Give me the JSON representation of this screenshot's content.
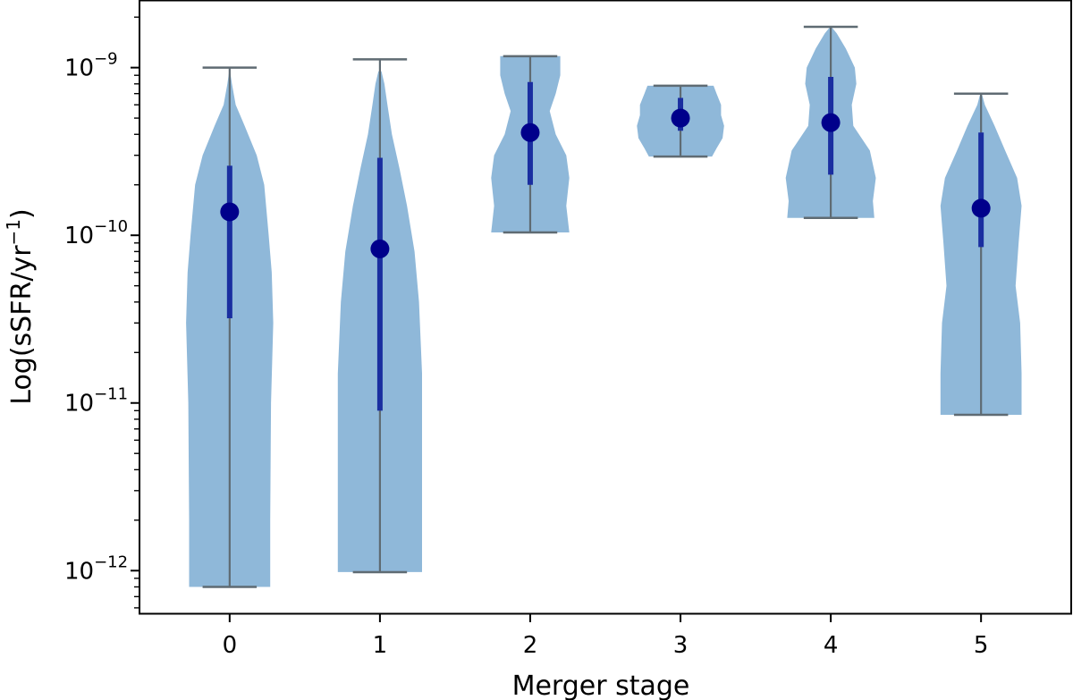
{
  "chart_data": {
    "type": "violin",
    "xlabel": "Merger stage",
    "ylabel": {
      "text": "Log(sSFR/yr",
      "superscript": "−1",
      "close": ")"
    },
    "yscale": "log",
    "ylim": [
      5.5e-13,
      2.5e-09
    ],
    "xlim": [
      -0.6,
      5.6
    ],
    "x_ticks": [
      "0",
      "1",
      "2",
      "3",
      "4",
      "5"
    ],
    "y_ticks": [
      {
        "base": "10",
        "exp": "−12",
        "value": 1e-12
      },
      {
        "base": "10",
        "exp": "−11",
        "value": 1e-11
      },
      {
        "base": "10",
        "exp": "−10",
        "value": 1e-10
      },
      {
        "base": "10",
        "exp": "−9",
        "value": 1e-09
      }
    ],
    "colors": {
      "violin_fill": "#8fb8d9",
      "whisker": "#5f6b73",
      "iqr": "#1a2ea0",
      "median": "#00008b"
    },
    "violins": [
      {
        "stage": 0,
        "min": 8e-13,
        "max": 1e-09,
        "q1": 3.2e-11,
        "q3": 2.6e-10,
        "median": 1.38e-10,
        "profile": [
          [
            8e-13,
            0.27
          ],
          [
            2e-12,
            0.27
          ],
          [
            1e-11,
            0.275
          ],
          [
            3e-11,
            0.29
          ],
          [
            6e-11,
            0.28
          ],
          [
            1e-10,
            0.26
          ],
          [
            2e-10,
            0.23
          ],
          [
            3e-10,
            0.18
          ],
          [
            4.5e-10,
            0.1
          ],
          [
            6e-10,
            0.04
          ],
          [
            8e-10,
            0.015
          ],
          [
            9.5e-10,
            0.003
          ]
        ]
      },
      {
        "stage": 1,
        "min": 9.8e-13,
        "max": 1.12e-09,
        "q1": 9e-12,
        "q3": 2.9e-10,
        "median": 8.3e-11,
        "profile": [
          [
            9.8e-13,
            0.28
          ],
          [
            5e-12,
            0.28
          ],
          [
            1.5e-11,
            0.28
          ],
          [
            4e-11,
            0.26
          ],
          [
            8e-11,
            0.23
          ],
          [
            1.5e-10,
            0.18
          ],
          [
            2.5e-10,
            0.13
          ],
          [
            4e-10,
            0.08
          ],
          [
            6e-10,
            0.05
          ],
          [
            8e-10,
            0.03
          ],
          [
            9.5e-10,
            0.01
          ]
        ]
      },
      {
        "stage": 2,
        "min": 1.04e-10,
        "max": 1.17e-09,
        "q1": 2e-10,
        "q3": 8.2e-10,
        "median": 4.1e-10,
        "profile": [
          [
            1.04e-10,
            0.26
          ],
          [
            1.5e-10,
            0.24
          ],
          [
            2.2e-10,
            0.26
          ],
          [
            3e-10,
            0.24
          ],
          [
            4e-10,
            0.17
          ],
          [
            5.5e-10,
            0.13
          ],
          [
            7e-10,
            0.17
          ],
          [
            9e-10,
            0.2
          ],
          [
            1.1e-09,
            0.2
          ],
          [
            1.17e-09,
            0.2
          ]
        ]
      },
      {
        "stage": 3,
        "min": 2.95e-10,
        "max": 7.8e-10,
        "q1": 4.2e-10,
        "q3": 6.6e-10,
        "median": 5e-10,
        "profile": [
          [
            2.95e-10,
            0.21
          ],
          [
            3.3e-10,
            0.24
          ],
          [
            3.8e-10,
            0.28
          ],
          [
            4.5e-10,
            0.29
          ],
          [
            5.2e-10,
            0.27
          ],
          [
            6e-10,
            0.27
          ],
          [
            7e-10,
            0.24
          ],
          [
            7.8e-10,
            0.22
          ]
        ]
      },
      {
        "stage": 4,
        "min": 1.27e-10,
        "max": 1.75e-09,
        "q1": 2.3e-10,
        "q3": 8.8e-10,
        "median": 4.7e-10,
        "profile": [
          [
            1.27e-10,
            0.29
          ],
          [
            1.6e-10,
            0.28
          ],
          [
            2.2e-10,
            0.3
          ],
          [
            3.2e-10,
            0.26
          ],
          [
            4.5e-10,
            0.15
          ],
          [
            6e-10,
            0.14
          ],
          [
            8e-10,
            0.17
          ],
          [
            1e-09,
            0.16
          ],
          [
            1.3e-09,
            0.1
          ],
          [
            1.6e-09,
            0.04
          ],
          [
            1.75e-09,
            0.005
          ]
        ]
      },
      {
        "stage": 5,
        "min": 8.5e-12,
        "max": 7e-10,
        "q1": 8.5e-11,
        "q3": 4.1e-10,
        "median": 1.45e-10,
        "profile": [
          [
            8.5e-12,
            0.27
          ],
          [
            1.5e-11,
            0.27
          ],
          [
            3e-11,
            0.26
          ],
          [
            5e-11,
            0.23
          ],
          [
            9e-11,
            0.25
          ],
          [
            1.5e-10,
            0.27
          ],
          [
            2.2e-10,
            0.24
          ],
          [
            3.2e-10,
            0.16
          ],
          [
            4.5e-10,
            0.09
          ],
          [
            6e-10,
            0.025
          ],
          [
            7e-10,
            0.005
          ]
        ]
      }
    ]
  }
}
